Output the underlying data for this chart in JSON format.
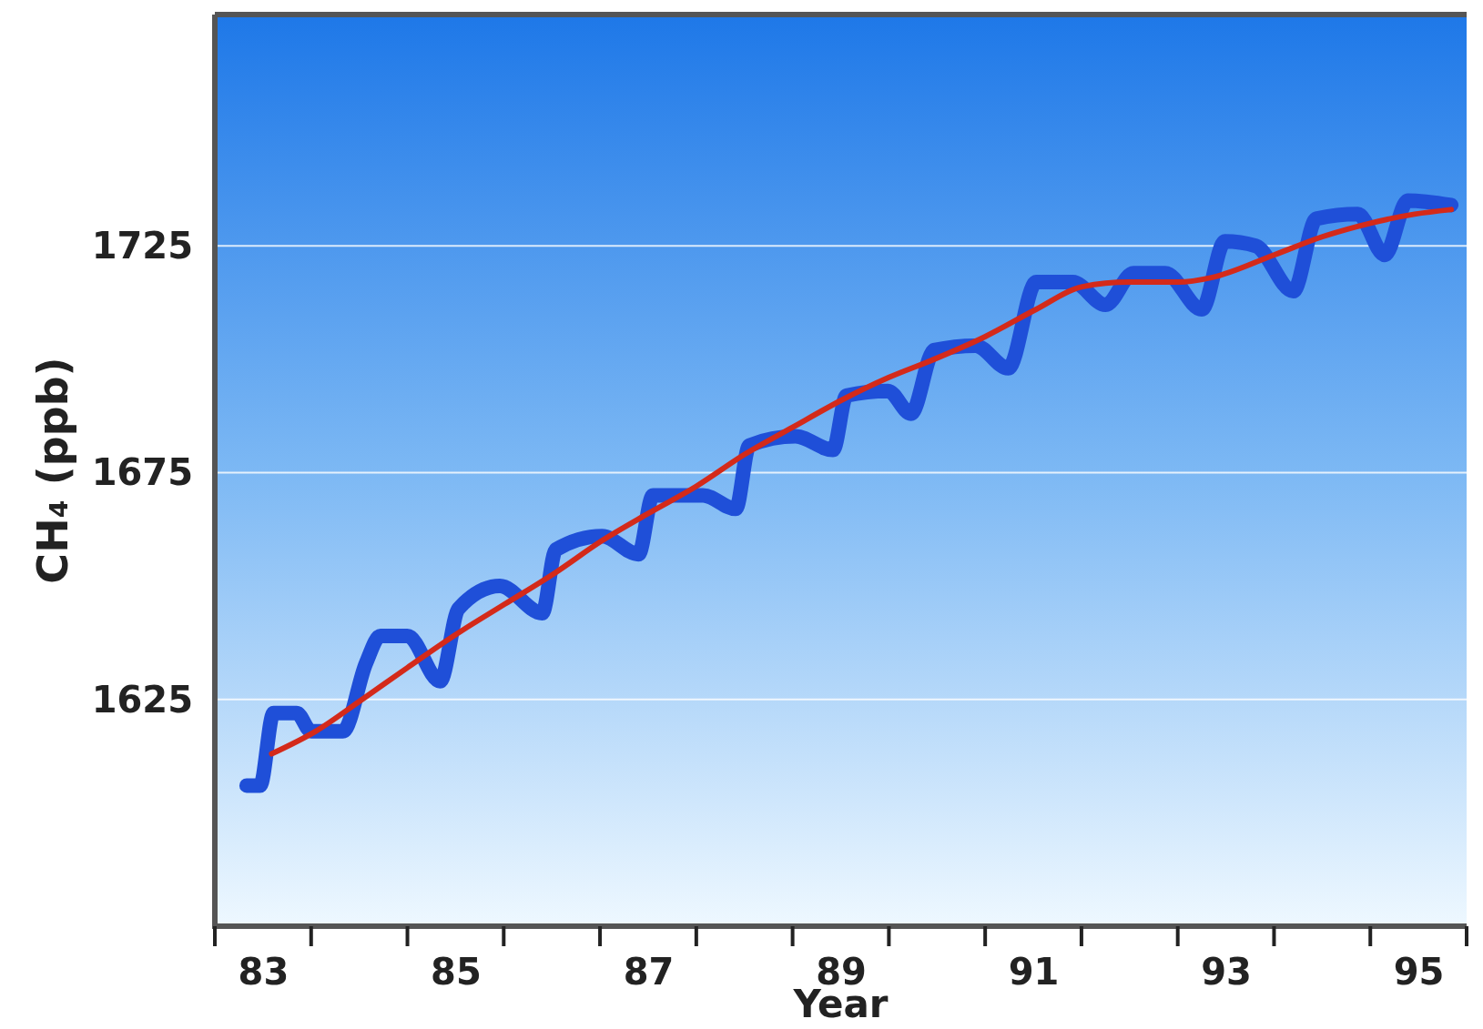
{
  "chart_data": {
    "type": "line",
    "xlabel": "Year",
    "ylabel": "CH₄ (ppb)",
    "xlim": [
      82.5,
      95.5
    ],
    "ylim": [
      1575,
      1776
    ],
    "xticks": [
      83,
      85,
      87,
      89,
      91,
      93,
      95
    ],
    "yticks": [
      1625,
      1675,
      1725
    ],
    "grid": "y",
    "marker": "none",
    "line_style": "solid",
    "series": [
      {
        "color": "#1f4fd8",
        "x": [
          82.83,
          82.97,
          83.11,
          83.35,
          83.5,
          83.83,
          84.07,
          84.22,
          84.5,
          84.84,
          85.03,
          85.46,
          85.9,
          86.04,
          86.52,
          86.9,
          87.05,
          87.57,
          87.91,
          88.05,
          88.53,
          88.92,
          89.06,
          89.49,
          89.73,
          89.97,
          90.4,
          90.74,
          91.03,
          91.41,
          91.75,
          92.04,
          92.37,
          92.75,
          92.99,
          93.31,
          93.7,
          93.94,
          94.37,
          94.65,
          94.89,
          95.34
        ],
        "values": [
          1606,
          1606,
          1622,
          1622,
          1618,
          1618,
          1633,
          1639,
          1639,
          1629,
          1645,
          1650,
          1644,
          1658,
          1661,
          1657,
          1670,
          1670,
          1667,
          1681,
          1683,
          1680,
          1692,
          1693,
          1688,
          1702,
          1703,
          1698,
          1717,
          1717,
          1712,
          1719,
          1719,
          1711,
          1726,
          1725,
          1715,
          1731,
          1732,
          1723,
          1735,
          1734
        ]
      },
      {
        "color": "#d42a1a",
        "x": [
          83.09,
          83.55,
          84.03,
          84.5,
          84.98,
          85.51,
          86.04,
          86.52,
          87.0,
          87.5,
          88.0,
          88.5,
          89.01,
          89.5,
          89.97,
          90.5,
          91.03,
          91.51,
          91.99,
          92.51,
          92.85,
          93.5,
          94.0,
          94.5,
          94.96,
          95.34
        ],
        "values": [
          1613,
          1618,
          1625,
          1632,
          1639,
          1646,
          1653,
          1660,
          1666,
          1672,
          1679,
          1685,
          1691,
          1696,
          1700,
          1705,
          1711,
          1716,
          1717,
          1717,
          1718,
          1723,
          1727,
          1730,
          1732,
          1733
        ]
      }
    ]
  }
}
